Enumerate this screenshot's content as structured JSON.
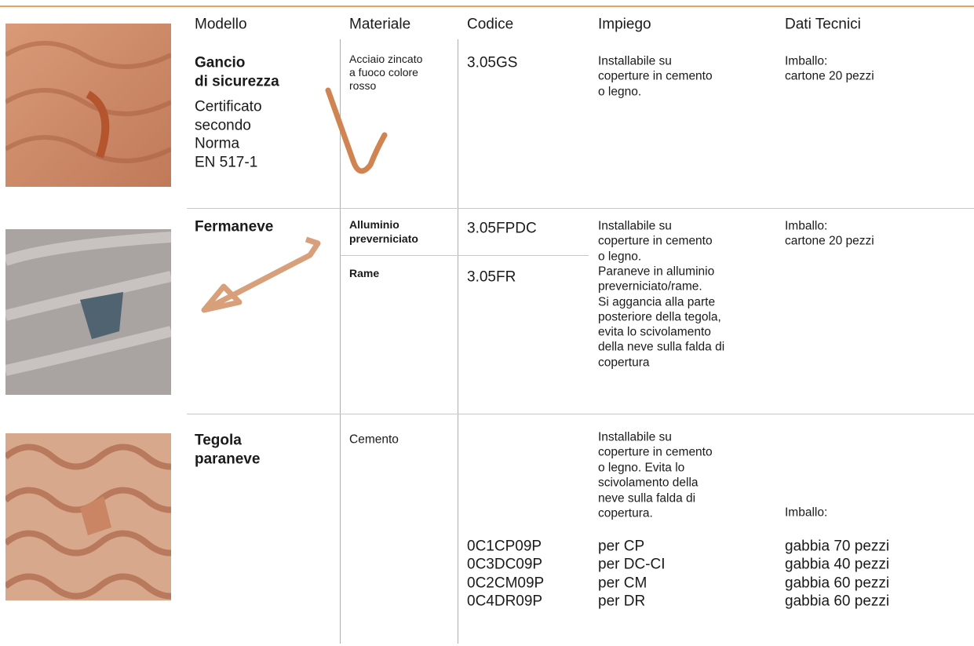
{
  "header": {
    "columns": [
      "Modello",
      "Materiale",
      "Codice",
      "Impiego",
      "Dati Tecnici"
    ]
  },
  "rows": [
    {
      "title": [
        "Gancio",
        "di sicurezza"
      ],
      "note": [
        "Certificato",
        "secondo",
        "Norma",
        "EN 517-1"
      ],
      "materiale": [
        "Acciaio zincato",
        "a fuoco colore",
        "rosso"
      ],
      "codice": "3.05GS",
      "impiego": [
        "Installabile su",
        "coperture in cemento",
        "o legno."
      ],
      "dati": [
        "Imballo:",
        "cartone 20 pezzi"
      ]
    },
    {
      "title": [
        "Fermaneve"
      ],
      "variants": [
        {
          "materiale": [
            "Alluminio",
            "preverniciato"
          ],
          "codice": "3.05FPDC"
        },
        {
          "materiale": [
            "Rame"
          ],
          "codice": "3.05FR"
        }
      ],
      "impiego": [
        "Installabile su",
        "coperture in cemento",
        "o legno.",
        "Paraneve in alluminio",
        "preverniciato/rame.",
        "Si aggancia alla parte",
        "posteriore della tegola,",
        "evita lo scivolamento",
        "della neve sulla falda di",
        "copertura"
      ],
      "dati": [
        "Imballo:",
        "cartone 20 pezzi"
      ]
    },
    {
      "title": [
        "Tegola",
        "paraneve"
      ],
      "materiale": [
        "Cemento"
      ],
      "impiego": [
        "Installabile su",
        "coperture in cemento",
        "o legno. Evita lo",
        "scivolamento della",
        "neve sulla falda di",
        "copertura."
      ],
      "dati": [
        "Imballo:"
      ],
      "items": [
        {
          "codice": "0C1CP09P",
          "impiego": "per CP",
          "dati": "gabbia 70 pezzi"
        },
        {
          "codice": "0C3DC09P",
          "impiego": "per DC-CI",
          "dati": "gabbia 40 pezzi"
        },
        {
          "codice": "0C2CM09P",
          "impiego": "per CM",
          "dati": "gabbia 60 pezzi"
        },
        {
          "codice": "0C4DR09P",
          "impiego": "per DR",
          "dati": "gabbia 60 pezzi"
        }
      ]
    }
  ]
}
